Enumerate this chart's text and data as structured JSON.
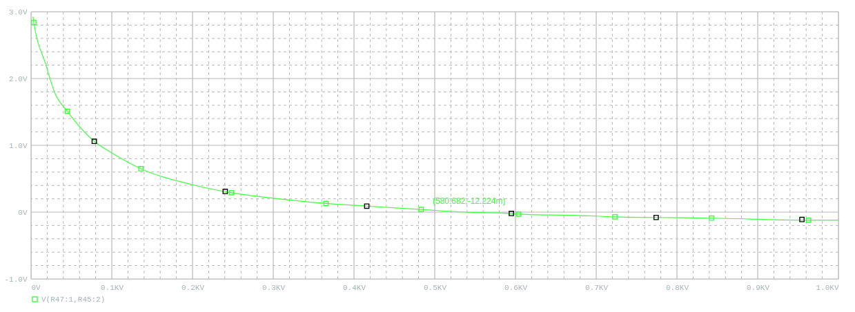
{
  "chart_data": {
    "type": "line",
    "xlim": [
      0,
      1
    ],
    "ylim": [
      -1,
      3
    ],
    "xticks": [
      {
        "value": 0,
        "label": "0V"
      },
      {
        "value": 0.02,
        "label": null
      },
      {
        "value": 0.04,
        "label": null
      },
      {
        "value": 0.06,
        "label": null
      },
      {
        "value": 0.08,
        "label": null
      },
      {
        "value": 0.1,
        "label": "0.1KV"
      },
      {
        "value": 0.12,
        "label": null
      },
      {
        "value": 0.14,
        "label": null
      },
      {
        "value": 0.16,
        "label": null
      },
      {
        "value": 0.18,
        "label": null
      },
      {
        "value": 0.2,
        "label": "0.2KV"
      },
      {
        "value": 0.22,
        "label": null
      },
      {
        "value": 0.24,
        "label": null
      },
      {
        "value": 0.26,
        "label": null
      },
      {
        "value": 0.28,
        "label": null
      },
      {
        "value": 0.3,
        "label": "0.3KV"
      },
      {
        "value": 0.32,
        "label": null
      },
      {
        "value": 0.34,
        "label": null
      },
      {
        "value": 0.36,
        "label": null
      },
      {
        "value": 0.38,
        "label": null
      },
      {
        "value": 0.4,
        "label": "0.4KV"
      },
      {
        "value": 0.42,
        "label": null
      },
      {
        "value": 0.44,
        "label": null
      },
      {
        "value": 0.46,
        "label": null
      },
      {
        "value": 0.48,
        "label": null
      },
      {
        "value": 0.5,
        "label": "0.5KV"
      },
      {
        "value": 0.52,
        "label": null
      },
      {
        "value": 0.54,
        "label": null
      },
      {
        "value": 0.56,
        "label": null
      },
      {
        "value": 0.58,
        "label": null
      },
      {
        "value": 0.6,
        "label": "0.6KV"
      },
      {
        "value": 0.62,
        "label": null
      },
      {
        "value": 0.64,
        "label": null
      },
      {
        "value": 0.66,
        "label": null
      },
      {
        "value": 0.68,
        "label": null
      },
      {
        "value": 0.7,
        "label": "0.7KV"
      },
      {
        "value": 0.72,
        "label": null
      },
      {
        "value": 0.74,
        "label": null
      },
      {
        "value": 0.76,
        "label": null
      },
      {
        "value": 0.78,
        "label": null
      },
      {
        "value": 0.8,
        "label": "0.8KV"
      },
      {
        "value": 0.82,
        "label": null
      },
      {
        "value": 0.84,
        "label": null
      },
      {
        "value": 0.86,
        "label": null
      },
      {
        "value": 0.88,
        "label": null
      },
      {
        "value": 0.9,
        "label": "0.9KV"
      },
      {
        "value": 0.92,
        "label": null
      },
      {
        "value": 0.94,
        "label": null
      },
      {
        "value": 0.96,
        "label": null
      },
      {
        "value": 0.98,
        "label": null
      },
      {
        "value": 1,
        "label": "1.0KV"
      }
    ],
    "yticks": [
      {
        "value": -1,
        "label": "-1.0V"
      },
      {
        "value": -0.8,
        "label": null
      },
      {
        "value": -0.6,
        "label": null
      },
      {
        "value": -0.4,
        "label": null
      },
      {
        "value": -0.2,
        "label": null
      },
      {
        "value": 0,
        "label": "0V"
      },
      {
        "value": 0.2,
        "label": null
      },
      {
        "value": 0.4,
        "label": null
      },
      {
        "value": 0.6,
        "label": null
      },
      {
        "value": 0.8,
        "label": null
      },
      {
        "value": 1,
        "label": "1.0V"
      },
      {
        "value": 1.2,
        "label": null
      },
      {
        "value": 1.4,
        "label": null
      },
      {
        "value": 1.6,
        "label": null
      },
      {
        "value": 1.8,
        "label": null
      },
      {
        "value": 2,
        "label": "2.0V"
      },
      {
        "value": 2.2,
        "label": null
      },
      {
        "value": 2.4,
        "label": null
      },
      {
        "value": 2.6,
        "label": null
      },
      {
        "value": 2.8,
        "label": null
      },
      {
        "value": 3,
        "label": "3.0V"
      }
    ],
    "grid": true,
    "legend": "bottom left",
    "series": [
      {
        "name": "V(R47:1,R45:2)",
        "color": "#40ff40",
        "x": [
          0.0023,
          0.0034,
          0.0182,
          0.0295,
          0.0449,
          0.0783,
          0.0996,
          0.1361,
          0.2001,
          0.2483,
          0.2988,
          0.3653,
          0.4158,
          0.4832,
          0.5373,
          0.580682,
          0.6038,
          0.6776,
          0.7231,
          0.7742,
          0.8426,
          0.9629,
          1.0
        ],
        "values": [
          2.93,
          2.84,
          2.21,
          1.78,
          1.51,
          1.06,
          0.89,
          0.65,
          0.41,
          0.29,
          0.21,
          0.13,
          0.09,
          0.04,
          0.0,
          -0.012,
          -0.03,
          -0.05,
          -0.07,
          -0.08,
          -0.09,
          -0.12,
          -0.12
        ]
      },
      {
        "type": "scatter",
        "marker": "square",
        "color": "#40ff40",
        "x": [
          0.0034,
          0.0449,
          0.1361,
          0.2483,
          0.3653,
          0.4832,
          0.6038,
          0.7231,
          0.8426,
          0.9629
        ],
        "values": [
          2.84,
          1.51,
          0.65,
          0.29,
          0.13,
          0.04,
          -0.03,
          -0.07,
          -0.09,
          -0.12
        ]
      },
      {
        "type": "scatter",
        "marker": "square",
        "color": "#000000",
        "x": [
          0.0783,
          0.2405,
          0.4158,
          0.5949,
          0.7742,
          0.9548
        ],
        "values": [
          1.06,
          0.31,
          0.09,
          -0.02,
          -0.08,
          -0.11
        ]
      }
    ],
    "annotations": [
      {
        "text": "(580.682,-12.224m)",
        "x": 0.580682,
        "y": -0.012
      }
    ]
  }
}
